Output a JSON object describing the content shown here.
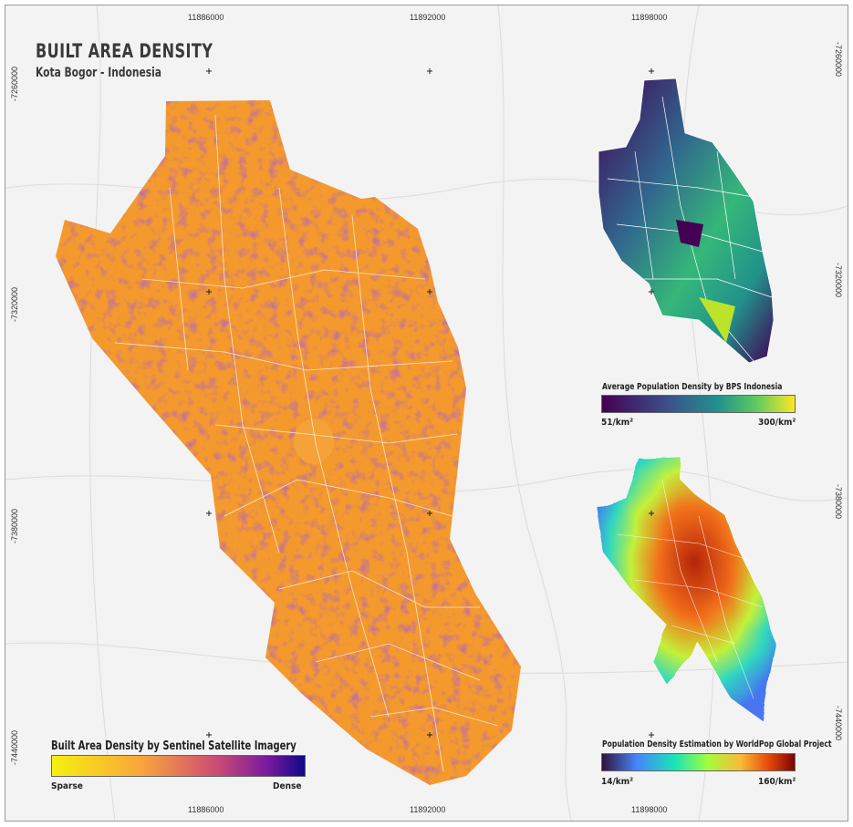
{
  "header": {
    "title": "BUILT AREA DENSITY",
    "subtitle": "Kota Bogor - Indonesia"
  },
  "grid": {
    "x_labels": [
      "11886000",
      "11892000",
      "11898000"
    ],
    "y_labels": [
      "-7260000",
      "-7320000",
      "-7380000",
      "-7440000"
    ]
  },
  "legends": {
    "built": {
      "title": "Built Area Density by Sentinel Satellite Imagery",
      "min_label": "Sparse",
      "max_label": "Dense",
      "colors": [
        "#f5f10f",
        "#f9a63a",
        "#cc4c74",
        "#7a1aa0",
        "#0d0887"
      ]
    },
    "bps": {
      "title": "Average Population Density by BPS Indonesia",
      "min_label": "51/km²",
      "max_label": "300/km²",
      "colors": [
        "#440154",
        "#3b528b",
        "#21918c",
        "#5ec962",
        "#fde725"
      ]
    },
    "worldpop": {
      "title": "Population Density Estimation by WorldPop Global Project",
      "min_label": "14/km²",
      "max_label": "160/km²",
      "colors": [
        "#30123b",
        "#4686fb",
        "#1be5b5",
        "#a4fc3c",
        "#fbb938",
        "#e4460a",
        "#7a0403"
      ]
    }
  }
}
